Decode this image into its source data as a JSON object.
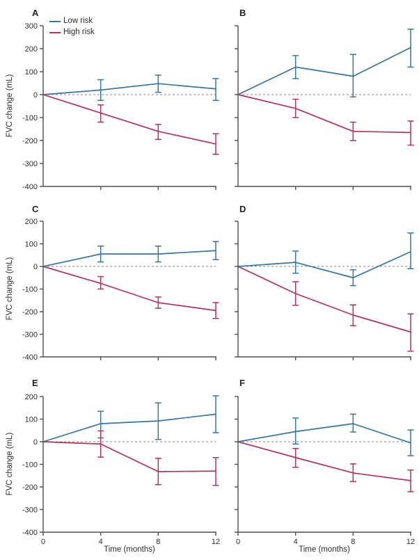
{
  "figure": {
    "y_axis_label": "FVC change (mL)",
    "x_axis_label": "Time (months)",
    "legend": [
      {
        "label": "Low risk",
        "color": "#3375a5"
      },
      {
        "label": "High risk",
        "color": "#bb2e5a"
      }
    ],
    "colors": {
      "low_risk": "#3375a5",
      "high_risk": "#bb2e5a",
      "axis": "#4d4d4f",
      "zero_line": "#9c9c9c",
      "text": "#2c2c2e"
    },
    "x_ticks": [
      0,
      4,
      8,
      12
    ]
  },
  "chart_data": [
    {
      "panel": "A",
      "type": "line",
      "x": [
        0,
        4,
        8,
        12
      ],
      "ylim": [
        -400,
        300
      ],
      "yticks": [
        300,
        200,
        100,
        0,
        -100,
        -200,
        -300,
        -400
      ],
      "series": [
        {
          "name": "Low risk",
          "values": [
            0,
            20,
            48,
            25
          ],
          "ci_low": [
            null,
            -25,
            10,
            -25
          ],
          "ci_high": [
            null,
            65,
            85,
            70
          ]
        },
        {
          "name": "High risk",
          "values": [
            0,
            -80,
            -160,
            -215
          ],
          "ci_low": [
            null,
            -120,
            -195,
            -260
          ],
          "ci_high": [
            null,
            -45,
            -130,
            -170
          ]
        }
      ]
    },
    {
      "panel": "B",
      "type": "line",
      "x": [
        0,
        4,
        8,
        12
      ],
      "ylim": [
        -400,
        300
      ],
      "yticks": [
        300,
        200,
        100,
        0,
        -100,
        -200,
        -300,
        -400
      ],
      "series": [
        {
          "name": "Low risk",
          "values": [
            0,
            120,
            80,
            205
          ],
          "ci_low": [
            null,
            70,
            -10,
            120
          ],
          "ci_high": [
            null,
            170,
            175,
            285
          ]
        },
        {
          "name": "High risk",
          "values": [
            0,
            -60,
            -160,
            -165
          ],
          "ci_low": [
            null,
            -100,
            -200,
            -220
          ],
          "ci_high": [
            null,
            -20,
            -120,
            -115
          ]
        }
      ]
    },
    {
      "panel": "C",
      "type": "line",
      "x": [
        0,
        4,
        8,
        12
      ],
      "ylim": [
        -400,
        200
      ],
      "yticks": [
        200,
        100,
        0,
        -100,
        -200,
        -300,
        -400
      ],
      "series": [
        {
          "name": "Low risk",
          "values": [
            0,
            55,
            55,
            70
          ],
          "ci_low": [
            null,
            20,
            20,
            30
          ],
          "ci_high": [
            null,
            90,
            90,
            110
          ]
        },
        {
          "name": "High risk",
          "values": [
            0,
            -75,
            -160,
            -195
          ],
          "ci_low": [
            null,
            -100,
            -185,
            -230
          ],
          "ci_high": [
            null,
            -45,
            -135,
            -160
          ]
        }
      ]
    },
    {
      "panel": "D",
      "type": "line",
      "x": [
        0,
        4,
        8,
        12
      ],
      "ylim": [
        -400,
        200
      ],
      "yticks": [
        200,
        100,
        0,
        -100,
        -200,
        -300,
        -400
      ],
      "series": [
        {
          "name": "Low risk",
          "values": [
            0,
            18,
            -50,
            65
          ],
          "ci_low": [
            null,
            -30,
            -85,
            -10
          ],
          "ci_high": [
            null,
            68,
            -15,
            148
          ]
        },
        {
          "name": "High risk",
          "values": [
            0,
            -120,
            -215,
            -290
          ],
          "ci_low": [
            null,
            -172,
            -262,
            -375
          ],
          "ci_high": [
            null,
            -68,
            -170,
            -210
          ]
        }
      ]
    },
    {
      "panel": "E",
      "type": "line",
      "x": [
        0,
        4,
        8,
        12
      ],
      "ylim": [
        -400,
        200
      ],
      "yticks": [
        200,
        100,
        0,
        -100,
        -200,
        -300,
        -400
      ],
      "series": [
        {
          "name": "Low risk",
          "values": [
            0,
            80,
            92,
            122
          ],
          "ci_low": [
            null,
            17,
            10,
            40
          ],
          "ci_high": [
            null,
            135,
            172,
            203
          ]
        },
        {
          "name": "High risk",
          "values": [
            0,
            -10,
            -132,
            -130
          ],
          "ci_low": [
            null,
            -68,
            -190,
            -193
          ],
          "ci_high": [
            null,
            48,
            -73,
            -70
          ]
        }
      ]
    },
    {
      "panel": "F",
      "type": "line",
      "x": [
        0,
        4,
        8,
        12
      ],
      "ylim": [
        -400,
        200
      ],
      "yticks": [
        200,
        100,
        0,
        -100,
        -200,
        -300,
        -400
      ],
      "series": [
        {
          "name": "Low risk",
          "values": [
            0,
            45,
            80,
            -5
          ],
          "ci_low": [
            null,
            -10,
            43,
            -62
          ],
          "ci_high": [
            null,
            105,
            122,
            52
          ]
        },
        {
          "name": "High risk",
          "values": [
            0,
            -70,
            -138,
            -172
          ],
          "ci_low": [
            null,
            -113,
            -176,
            -221
          ],
          "ci_high": [
            null,
            -30,
            -98,
            -125
          ]
        }
      ]
    }
  ]
}
